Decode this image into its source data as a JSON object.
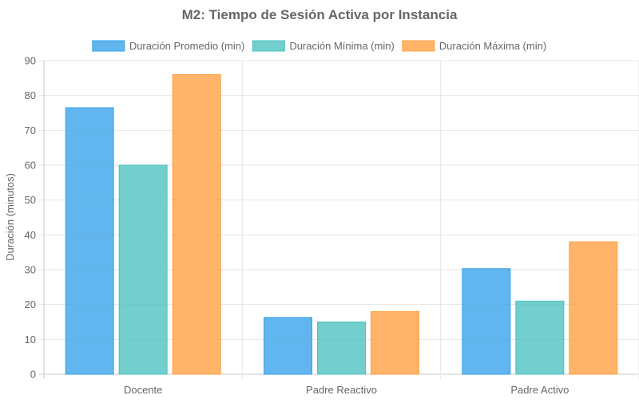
{
  "chart_data": {
    "type": "bar",
    "title": "M2: Tiempo de Sesión Activa por Instancia",
    "xlabel": "",
    "ylabel": "Duración (minutos)",
    "categories": [
      "Docente",
      "Padre Reactivo",
      "Padre Activo"
    ],
    "series": [
      {
        "name": "Duración Promedio (min)",
        "values": [
          76.5,
          16.3,
          30.3
        ],
        "color": "#36a2eb"
      },
      {
        "name": "Duración Mínima (min)",
        "values": [
          60,
          15,
          21
        ],
        "color": "#4bc0c0"
      },
      {
        "name": "Duración Máxima (min)",
        "values": [
          86,
          18,
          38
        ],
        "color": "#ff9f40"
      }
    ],
    "ylim": [
      0,
      90
    ],
    "yticks": [
      0,
      10,
      20,
      30,
      40,
      50,
      60,
      70,
      80,
      90
    ],
    "grid": true,
    "legend_position": "top"
  }
}
